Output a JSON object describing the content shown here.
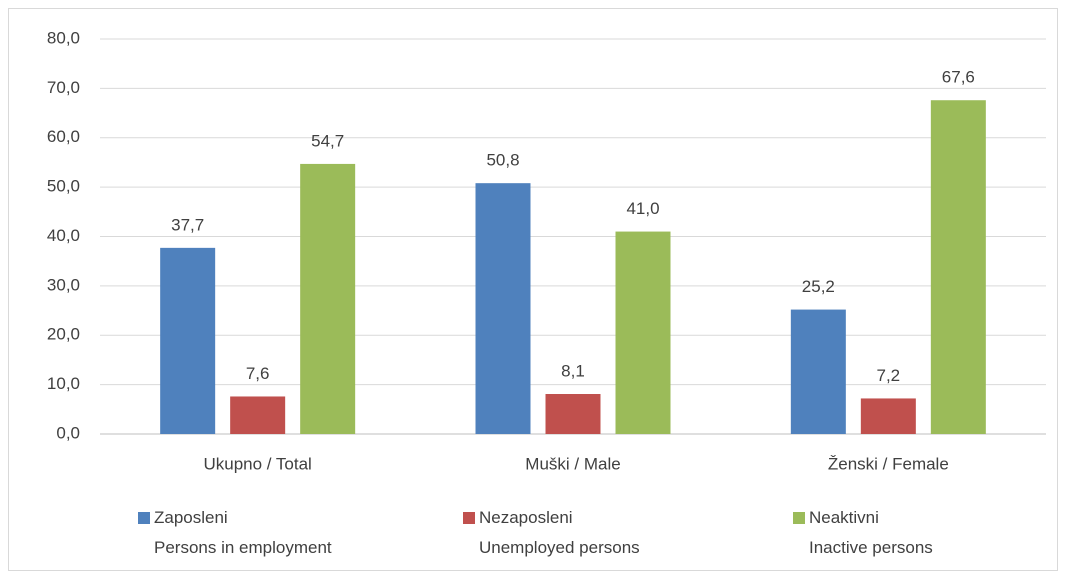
{
  "chart_data": {
    "type": "bar",
    "categories": [
      "Ukupno / Total",
      "Muški / Male",
      "Ženski / Female"
    ],
    "series": [
      {
        "name": "Zaposleni\nPersons in employment",
        "color": "#4f81bd",
        "values": [
          37.7,
          50.8,
          25.2
        ],
        "value_labels": [
          "37,7",
          "50,8",
          "25,2"
        ]
      },
      {
        "name": "Nezaposleni\nUnemployed persons",
        "color": "#c0504d",
        "values": [
          7.6,
          8.1,
          7.2
        ],
        "value_labels": [
          "7,6",
          "8,1",
          "7,2"
        ]
      },
      {
        "name": "Neaktivni\nInactive persons",
        "color": "#9bbb59",
        "values": [
          54.7,
          41.0,
          67.6
        ],
        "value_labels": [
          "54,7",
          "41,0",
          "67,6"
        ]
      }
    ],
    "ylim": [
      0,
      80
    ],
    "yticks": [
      {
        "value": 0,
        "label": "0,0"
      },
      {
        "value": 10,
        "label": "10,0"
      },
      {
        "value": 20,
        "label": "20,0"
      },
      {
        "value": 30,
        "label": "30,0"
      },
      {
        "value": 40,
        "label": "40,0"
      },
      {
        "value": 50,
        "label": "50,0"
      },
      {
        "value": 60,
        "label": "60,0"
      },
      {
        "value": 70,
        "label": "70,0"
      },
      {
        "value": 80,
        "label": "80,0"
      }
    ],
    "grid": true,
    "legend": "bottom"
  }
}
